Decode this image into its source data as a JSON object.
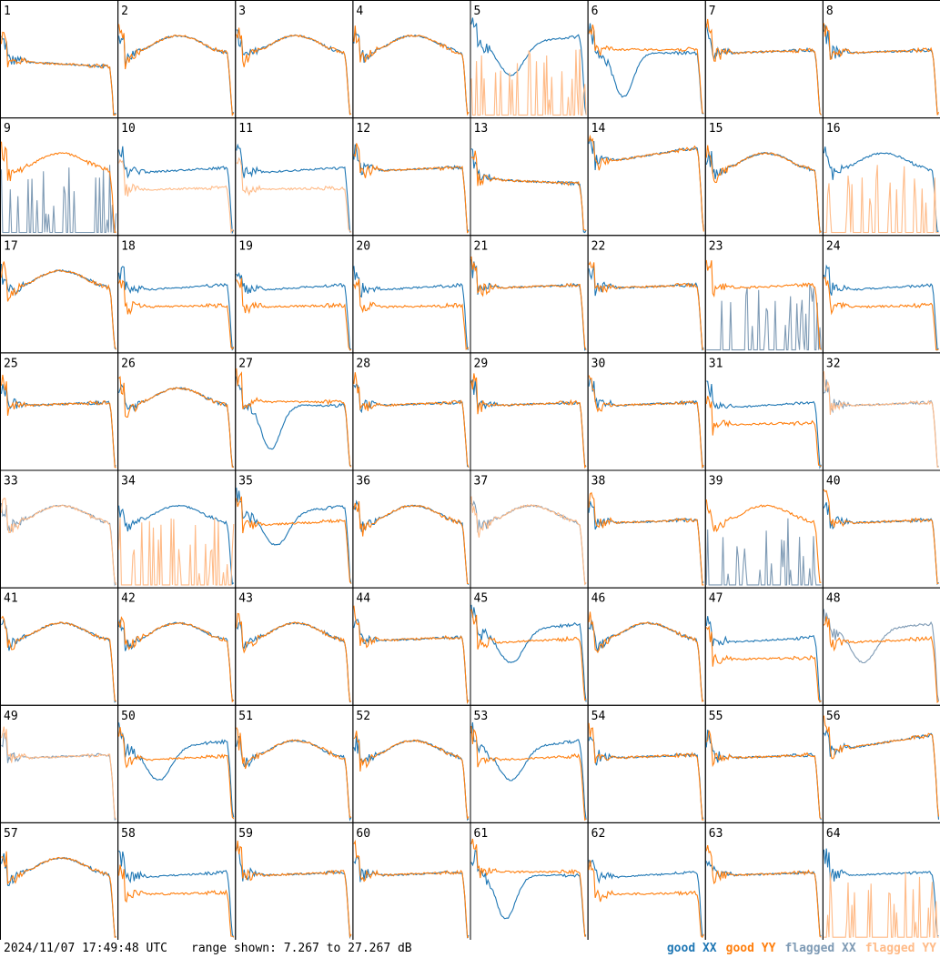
{
  "footer": {
    "timestamp": "2024/11/07 17:49:48 UTC",
    "range_text": "range shown: 7.267 to 27.267 dB"
  },
  "legend": [
    {
      "key": "good_xx",
      "label": "good XX",
      "color": "#1f77b4"
    },
    {
      "key": "good_yy",
      "label": "good YY",
      "color": "#ff7f0e"
    },
    {
      "key": "flagged_xx",
      "label": "flagged XX",
      "color": "#7f9bb5"
    },
    {
      "key": "flagged_yy",
      "label": "flagged YY",
      "color": "#ffbb88"
    }
  ],
  "chart_data": {
    "type": "line",
    "grid": {
      "rows": 8,
      "cols": 8
    },
    "ylim": [
      7.267,
      27.267
    ],
    "yunit": "dB",
    "panels": [
      {
        "label": "1",
        "xx": "good",
        "yy": "good",
        "shape": "fall"
      },
      {
        "label": "2",
        "xx": "good",
        "yy": "good",
        "shape": "bowl"
      },
      {
        "label": "3",
        "xx": "good",
        "yy": "good",
        "shape": "bowl"
      },
      {
        "label": "4",
        "xx": "good",
        "yy": "good",
        "shape": "bowl"
      },
      {
        "label": "5",
        "xx": "good",
        "yy": "flagged",
        "shape": "dip"
      },
      {
        "label": "6",
        "xx": "good",
        "yy": "good",
        "shape": "deepdip"
      },
      {
        "label": "7",
        "xx": "good",
        "yy": "good",
        "shape": "flat"
      },
      {
        "label": "8",
        "xx": "good",
        "yy": "good",
        "shape": "flat"
      },
      {
        "label": "9",
        "xx": "flagged",
        "yy": "good",
        "shape": "bowl"
      },
      {
        "label": "10",
        "xx": "good",
        "yy": "flagged",
        "shape": "split"
      },
      {
        "label": "11",
        "xx": "good",
        "yy": "flagged",
        "shape": "split"
      },
      {
        "label": "12",
        "xx": "good",
        "yy": "good",
        "shape": "flat"
      },
      {
        "label": "13",
        "xx": "good",
        "yy": "good",
        "shape": "fall"
      },
      {
        "label": "14",
        "xx": "good",
        "yy": "good",
        "shape": "rise"
      },
      {
        "label": "15",
        "xx": "good",
        "yy": "good",
        "shape": "bowl"
      },
      {
        "label": "16",
        "xx": "good",
        "yy": "flagged",
        "shape": "bowl"
      },
      {
        "label": "17",
        "xx": "good",
        "yy": "good",
        "shape": "bowl"
      },
      {
        "label": "18",
        "xx": "good",
        "yy": "good",
        "shape": "split"
      },
      {
        "label": "19",
        "xx": "good",
        "yy": "good",
        "shape": "split"
      },
      {
        "label": "20",
        "xx": "good",
        "yy": "good",
        "shape": "split"
      },
      {
        "label": "21",
        "xx": "good",
        "yy": "good",
        "shape": "flat"
      },
      {
        "label": "22",
        "xx": "good",
        "yy": "good",
        "shape": "flat"
      },
      {
        "label": "23",
        "xx": "flagged",
        "yy": "good",
        "shape": "flat"
      },
      {
        "label": "24",
        "xx": "good",
        "yy": "good",
        "shape": "split"
      },
      {
        "label": "25",
        "xx": "good",
        "yy": "good",
        "shape": "flat"
      },
      {
        "label": "26",
        "xx": "good",
        "yy": "good",
        "shape": "bowl"
      },
      {
        "label": "27",
        "xx": "good",
        "yy": "good",
        "shape": "deepdip"
      },
      {
        "label": "28",
        "xx": "good",
        "yy": "good",
        "shape": "flat"
      },
      {
        "label": "29",
        "xx": "good",
        "yy": "good",
        "shape": "flat"
      },
      {
        "label": "30",
        "xx": "good",
        "yy": "good",
        "shape": "flat"
      },
      {
        "label": "31",
        "xx": "good",
        "yy": "good",
        "shape": "split"
      },
      {
        "label": "32",
        "xx": "flagged",
        "yy": "flagged",
        "shape": "flat"
      },
      {
        "label": "33",
        "xx": "flagged",
        "yy": "flagged",
        "shape": "bowl"
      },
      {
        "label": "34",
        "xx": "good",
        "yy": "flagged",
        "shape": "bowl"
      },
      {
        "label": "35",
        "xx": "good",
        "yy": "good",
        "shape": "dip"
      },
      {
        "label": "36",
        "xx": "good",
        "yy": "good",
        "shape": "bowl"
      },
      {
        "label": "37",
        "xx": "flagged",
        "yy": "flagged",
        "shape": "bowl"
      },
      {
        "label": "38",
        "xx": "good",
        "yy": "good",
        "shape": "flat"
      },
      {
        "label": "39",
        "xx": "flagged",
        "yy": "good",
        "shape": "bowl"
      },
      {
        "label": "40",
        "xx": "good",
        "yy": "good",
        "shape": "flat"
      },
      {
        "label": "41",
        "xx": "good",
        "yy": "good",
        "shape": "bowl"
      },
      {
        "label": "42",
        "xx": "good",
        "yy": "good",
        "shape": "bowl"
      },
      {
        "label": "43",
        "xx": "good",
        "yy": "good",
        "shape": "bowl"
      },
      {
        "label": "44",
        "xx": "good",
        "yy": "good",
        "shape": "flat"
      },
      {
        "label": "45",
        "xx": "good",
        "yy": "good",
        "shape": "dip"
      },
      {
        "label": "46",
        "xx": "good",
        "yy": "good",
        "shape": "bowl"
      },
      {
        "label": "47",
        "xx": "good",
        "yy": "good",
        "shape": "split"
      },
      {
        "label": "48",
        "xx": "flagged",
        "yy": "good",
        "shape": "dip"
      },
      {
        "label": "49",
        "xx": "flagged",
        "yy": "flagged",
        "shape": "flat"
      },
      {
        "label": "50",
        "xx": "good",
        "yy": "good",
        "shape": "dip"
      },
      {
        "label": "51",
        "xx": "good",
        "yy": "good",
        "shape": "bowl"
      },
      {
        "label": "52",
        "xx": "good",
        "yy": "good",
        "shape": "bowl"
      },
      {
        "label": "53",
        "xx": "good",
        "yy": "good",
        "shape": "dip"
      },
      {
        "label": "54",
        "xx": "good",
        "yy": "good",
        "shape": "flat"
      },
      {
        "label": "55",
        "xx": "good",
        "yy": "good",
        "shape": "flat"
      },
      {
        "label": "56",
        "xx": "good",
        "yy": "good",
        "shape": "rise"
      },
      {
        "label": "57",
        "xx": "good",
        "yy": "good",
        "shape": "bowl"
      },
      {
        "label": "58",
        "xx": "good",
        "yy": "good",
        "shape": "split"
      },
      {
        "label": "59",
        "xx": "good",
        "yy": "good",
        "shape": "flat"
      },
      {
        "label": "60",
        "xx": "good",
        "yy": "good",
        "shape": "flat"
      },
      {
        "label": "61",
        "xx": "good",
        "yy": "good",
        "shape": "deepdip"
      },
      {
        "label": "62",
        "xx": "good",
        "yy": "good",
        "shape": "split"
      },
      {
        "label": "63",
        "xx": "good",
        "yy": "good",
        "shape": "flat"
      },
      {
        "label": "64",
        "xx": "good",
        "yy": "flagged",
        "shape": "flat"
      }
    ]
  }
}
